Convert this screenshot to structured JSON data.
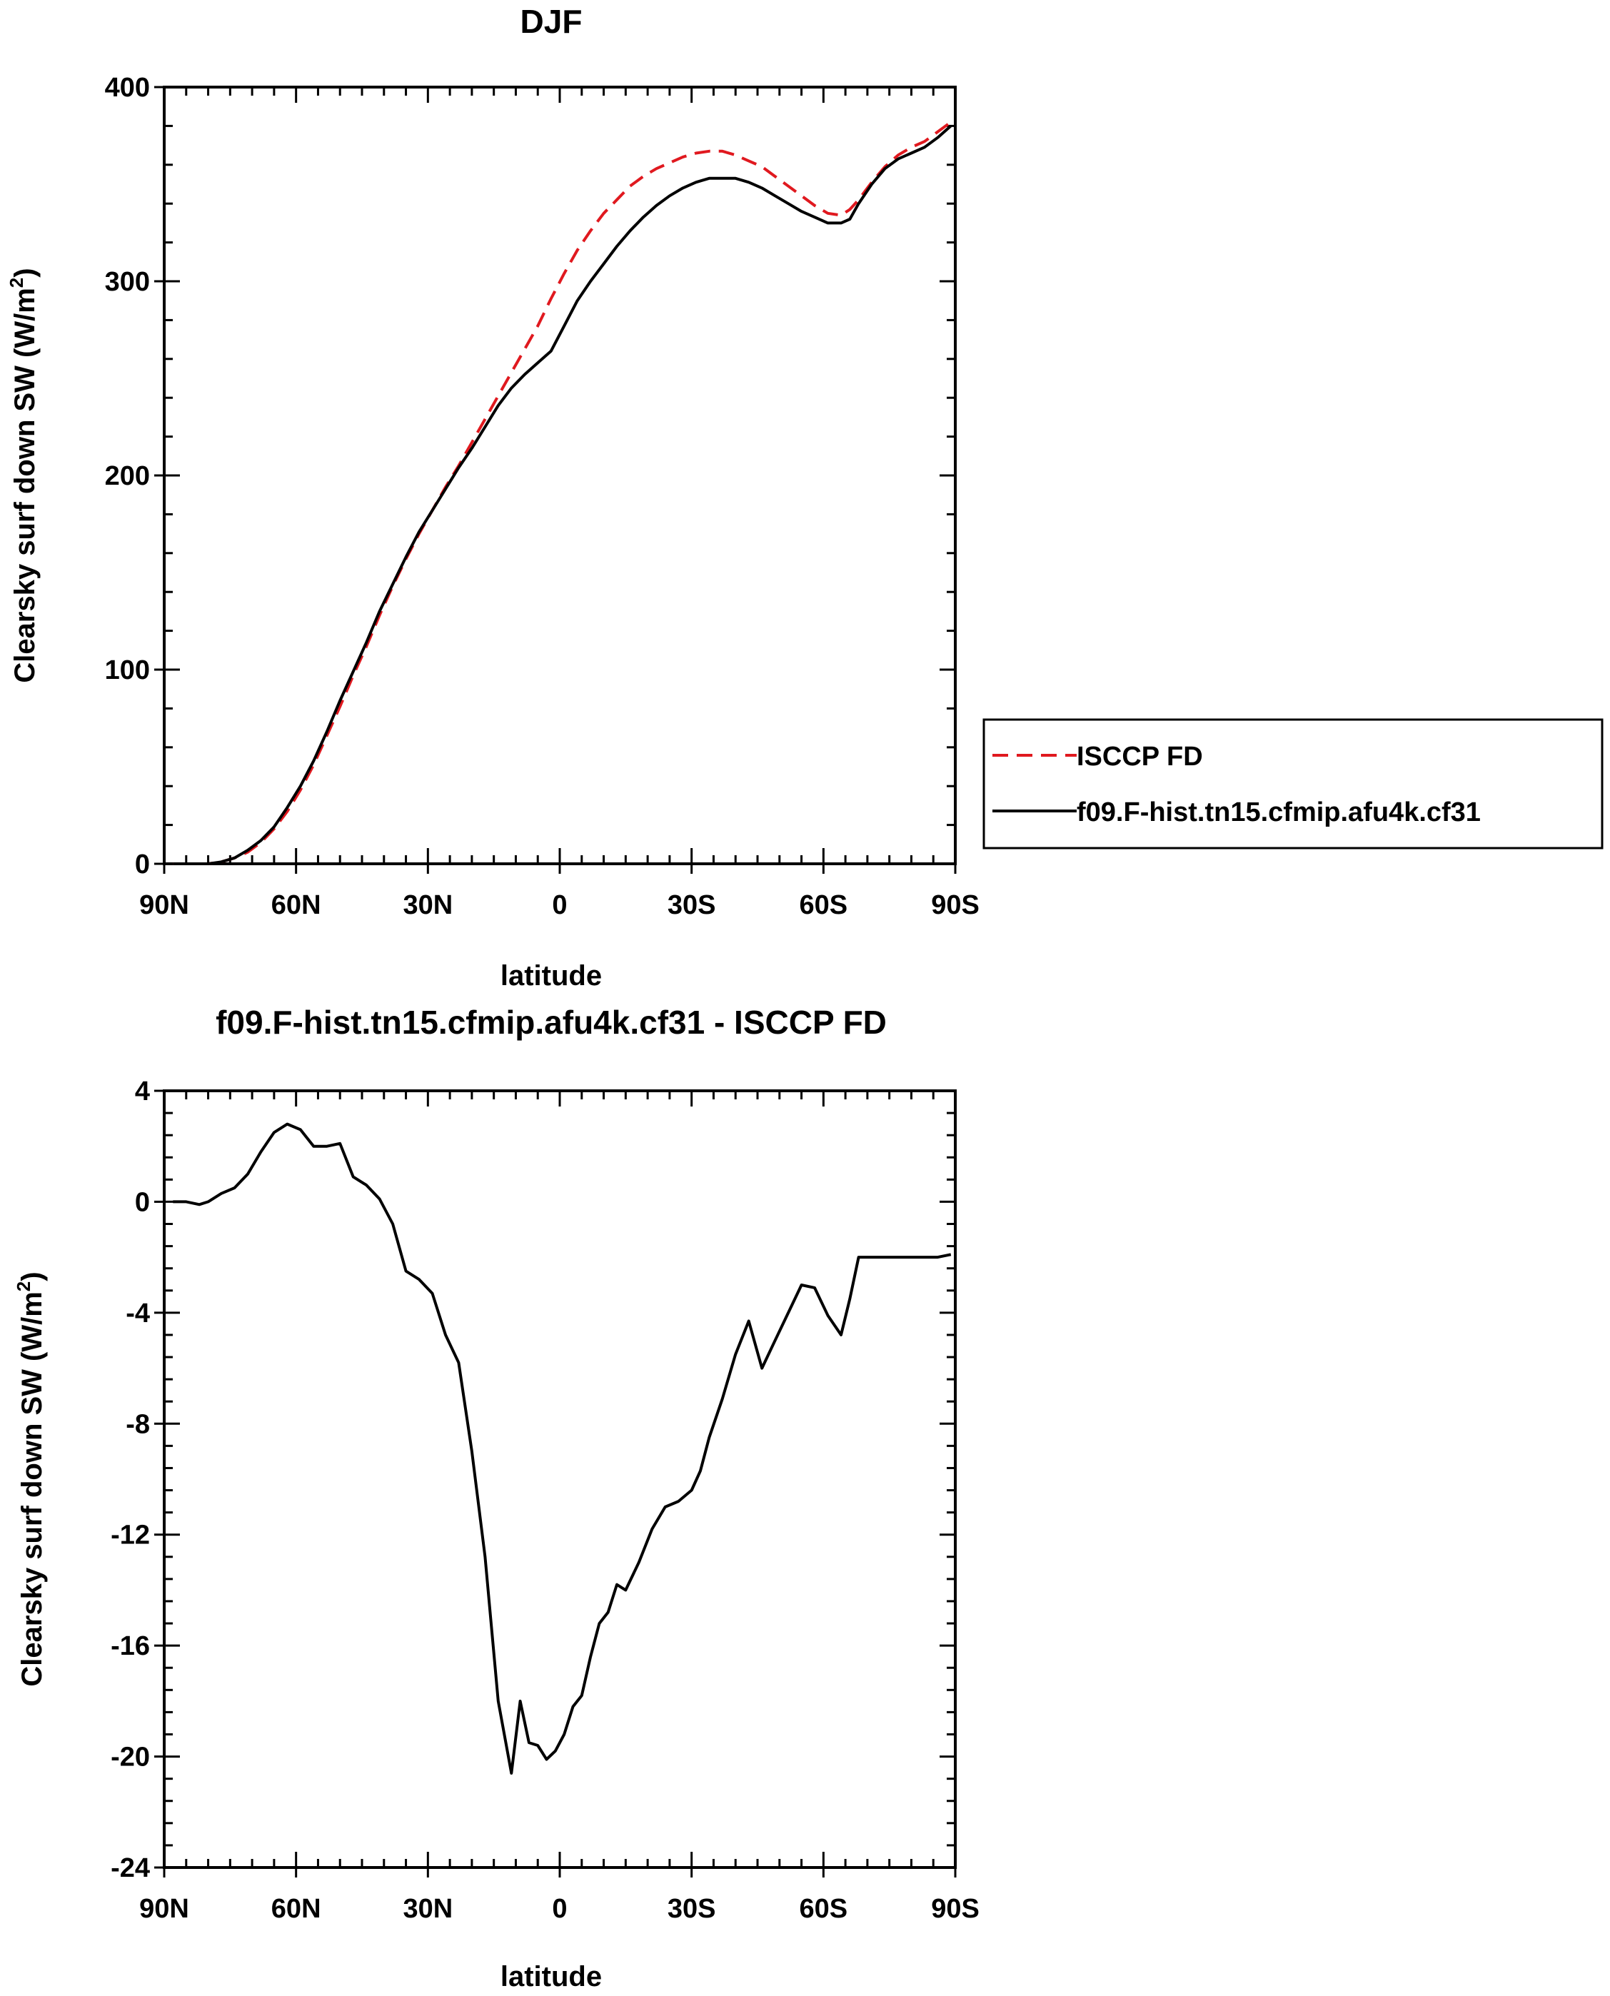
{
  "chart_data": [
    {
      "type": "line",
      "title": "DJF",
      "xlabel": "latitude",
      "ylabel": "Clearsky surf down SW (W/m",
      "ylabel_sup": "2",
      "ylabel_close": ")",
      "xlim": [
        90,
        -90
      ],
      "ylim": [
        0,
        400
      ],
      "xticks": [
        {
          "v": 90,
          "label": "90N"
        },
        {
          "v": 60,
          "label": "60N"
        },
        {
          "v": 30,
          "label": "30N"
        },
        {
          "v": 0,
          "label": "0"
        },
        {
          "v": -30,
          "label": "30S"
        },
        {
          "v": -60,
          "label": "60S"
        },
        {
          "v": -90,
          "label": "90S"
        }
      ],
      "yticks": [
        {
          "v": 0,
          "label": "0"
        },
        {
          "v": 100,
          "label": "100"
        },
        {
          "v": 200,
          "label": "200"
        },
        {
          "v": 300,
          "label": "300"
        },
        {
          "v": 400,
          "label": "400"
        }
      ],
      "legend_position": "right",
      "series": [
        {
          "name": "ISCCP FD",
          "color": "#e0191f",
          "dash": "dashed",
          "x": [
            88,
            84,
            80,
            77,
            74,
            71,
            68,
            65,
            62,
            59,
            56,
            53,
            50,
            47,
            44,
            41,
            38,
            35,
            32,
            29,
            26,
            23,
            20,
            17,
            14,
            11,
            8,
            5,
            2,
            -1,
            -4,
            -7,
            -10,
            -13,
            -16,
            -19,
            -22,
            -25,
            -28,
            -31,
            -34,
            -37,
            -40,
            -43,
            -46,
            -49,
            -52,
            -55,
            -58,
            -61,
            -64,
            -66,
            -68,
            -71,
            -74,
            -77,
            -80,
            -83,
            -86,
            -89
          ],
          "y": [
            0,
            0,
            0,
            1,
            3,
            6,
            11,
            18,
            27,
            38,
            51,
            66,
            81,
            97,
            112,
            128,
            143,
            157,
            170,
            182,
            194,
            205,
            217,
            229,
            241,
            253,
            265,
            277,
            291,
            304,
            316,
            326,
            335,
            342,
            349,
            354,
            358,
            361,
            364,
            366,
            367,
            367,
            365,
            362,
            359,
            354,
            349,
            344,
            339,
            335,
            334,
            337,
            342,
            351,
            359,
            365,
            369,
            372,
            377,
            382
          ]
        },
        {
          "name": "f09.F-hist.tn15.cfmip.afu4k.cf31",
          "color": "#000000",
          "dash": "solid",
          "x": [
            88,
            84,
            80,
            77,
            74,
            71,
            68,
            65,
            62,
            59,
            56,
            53,
            50,
            47,
            44,
            41,
            38,
            35,
            32,
            29,
            26,
            23,
            20,
            17,
            14,
            11,
            8,
            5,
            2,
            -1,
            -4,
            -7,
            -10,
            -13,
            -16,
            -19,
            -22,
            -25,
            -28,
            -31,
            -34,
            -37,
            -40,
            -43,
            -46,
            -49,
            -52,
            -55,
            -58,
            -61,
            -64,
            -66,
            -68,
            -71,
            -74,
            -77,
            -80,
            -83,
            -86,
            -89
          ],
          "y": [
            0,
            0,
            0,
            1,
            3,
            7,
            12,
            19,
            29,
            40,
            53,
            68,
            84,
            99,
            114,
            130,
            144,
            158,
            171,
            182,
            193,
            204,
            214,
            225,
            236,
            245,
            252,
            258,
            264,
            277,
            290,
            300,
            309,
            318,
            326,
            333,
            339,
            344,
            348,
            351,
            353,
            353,
            353,
            351,
            348,
            344,
            340,
            336,
            333,
            330,
            330,
            332,
            340,
            350,
            358,
            363,
            366,
            369,
            374,
            380
          ]
        }
      ]
    },
    {
      "type": "line",
      "title": "f09.F-hist.tn15.cfmip.afu4k.cf31 - ISCCP FD",
      "xlabel": "latitude",
      "ylabel": "Clearsky surf down SW (W/m",
      "ylabel_sup": "2",
      "ylabel_close": ")",
      "xlim": [
        90,
        -90
      ],
      "ylim": [
        -24,
        4
      ],
      "xticks": [
        {
          "v": 90,
          "label": "90N"
        },
        {
          "v": 60,
          "label": "60N"
        },
        {
          "v": 30,
          "label": "30N"
        },
        {
          "v": 0,
          "label": "0"
        },
        {
          "v": -30,
          "label": "30S"
        },
        {
          "v": -60,
          "label": "60S"
        },
        {
          "v": -90,
          "label": "90S"
        }
      ],
      "yticks": [
        {
          "v": 4,
          "label": "4"
        },
        {
          "v": 0,
          "label": "0"
        },
        {
          "v": -4,
          "label": "-4"
        },
        {
          "v": -8,
          "label": "-8"
        },
        {
          "v": -12,
          "label": "-12"
        },
        {
          "v": -16,
          "label": "-16"
        },
        {
          "v": -20,
          "label": "-20"
        },
        {
          "v": -24,
          "label": "-24"
        }
      ],
      "series": [
        {
          "color": "#000000",
          "x": [
            88,
            85,
            82,
            80,
            77,
            74,
            71,
            68,
            65,
            62,
            59,
            56,
            53,
            50,
            47,
            44,
            41,
            38,
            35,
            32,
            29,
            26,
            23,
            20,
            17,
            14,
            11,
            9,
            7,
            5,
            3,
            1,
            -1,
            -3,
            -5,
            -7,
            -9,
            -11,
            -13,
            -15,
            -18,
            -21,
            -24,
            -27,
            -30,
            -32,
            -34,
            -37,
            -40,
            -43,
            -46,
            -49,
            -52,
            -55,
            -58,
            -61,
            -64,
            -66,
            -68,
            -71,
            -74,
            -77,
            -80,
            -83,
            -86,
            -89
          ],
          "y": [
            0,
            0,
            -0.1,
            0,
            0.3,
            0.5,
            1.0,
            1.8,
            2.5,
            2.8,
            2.6,
            2.0,
            2.0,
            2.1,
            0.9,
            0.6,
            0.1,
            -0.8,
            -2.5,
            -2.8,
            -3.3,
            -4.8,
            -5.8,
            -9.0,
            -12.8,
            -18.0,
            -20.6,
            -18.0,
            -19.5,
            -19.6,
            -20.1,
            -19.8,
            -19.2,
            -18.2,
            -17.8,
            -16.4,
            -15.2,
            -14.8,
            -13.8,
            -14.0,
            -13.0,
            -11.8,
            -11.0,
            -10.8,
            -10.4,
            -9.7,
            -8.5,
            -7.1,
            -5.5,
            -4.3,
            -6.0,
            -5.0,
            -4.0,
            -3.0,
            -3.1,
            -4.1,
            -4.8,
            -3.5,
            -2.0,
            -2.0,
            -2.0,
            -2.0,
            -2.0,
            -2.0,
            -2.0,
            -1.9
          ]
        }
      ]
    }
  ]
}
